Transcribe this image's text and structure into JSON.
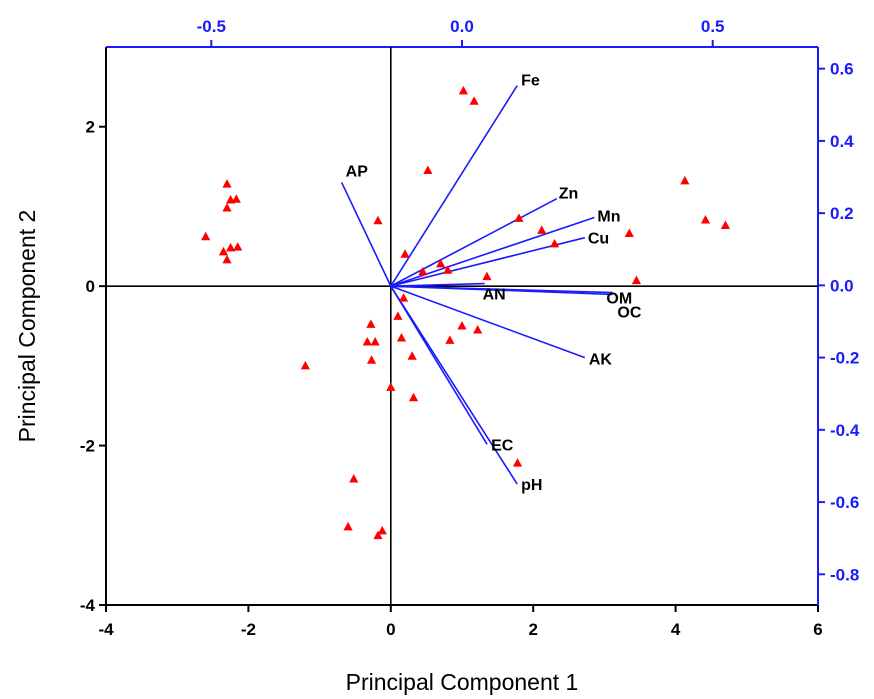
{
  "chart_data": {
    "type": "scatter",
    "xlabel": "Principal Component 1",
    "ylabel": "Principal Component 2",
    "xlim": [
      -4,
      6
    ],
    "ylim": [
      -4,
      3
    ],
    "x_ticks": [
      -4,
      -2,
      0,
      2,
      4,
      6
    ],
    "x_tick_labels": [
      "-4",
      "-2",
      "0",
      "2",
      "4",
      "6"
    ],
    "y_ticks": [
      -4,
      -2,
      0,
      2
    ],
    "y_tick_labels": [
      "-4",
      "-2",
      "0",
      "2"
    ],
    "top_xlim": [
      -0.71,
      0.71
    ],
    "top_ticks": [
      -0.5,
      0.0,
      0.5
    ],
    "top_tick_labels": [
      "-0.5",
      "0.0",
      "0.5"
    ],
    "right_ylim": [
      -0.885,
      0.66
    ],
    "right_ticks": [
      -0.8,
      -0.6,
      -0.4,
      -0.2,
      0.0,
      0.2,
      0.4,
      0.6
    ],
    "right_tick_labels": [
      "-0.8",
      "-0.6",
      "-0.4",
      "-0.2",
      "0.0",
      "0.2",
      "0.4",
      "0.6"
    ],
    "colors": {
      "scores": "#ff0000",
      "loadings": "#1a1aff",
      "secondary_axes": "#1a1aff",
      "frame": "#000000"
    },
    "scores": [
      [
        -2.3,
        1.28
      ],
      [
        -2.25,
        1.08
      ],
      [
        -2.17,
        1.09
      ],
      [
        -2.3,
        0.98
      ],
      [
        -2.6,
        0.62
      ],
      [
        -2.35,
        0.43
      ],
      [
        -2.25,
        0.48
      ],
      [
        -2.15,
        0.49
      ],
      [
        -2.3,
        0.33
      ],
      [
        -1.2,
        -1.0
      ],
      [
        -0.18,
        0.82
      ],
      [
        0.52,
        1.45
      ],
      [
        1.02,
        2.45
      ],
      [
        1.17,
        2.32
      ],
      [
        0.2,
        0.4
      ],
      [
        0.45,
        0.18
      ],
      [
        0.7,
        0.28
      ],
      [
        0.8,
        0.2
      ],
      [
        1.35,
        0.12
      ],
      [
        1.8,
        0.85
      ],
      [
        2.12,
        0.7
      ],
      [
        2.3,
        0.53
      ],
      [
        3.35,
        0.66
      ],
      [
        3.45,
        0.07
      ],
      [
        4.13,
        1.32
      ],
      [
        4.42,
        0.83
      ],
      [
        4.7,
        0.76
      ],
      [
        0.18,
        -0.15
      ],
      [
        0.1,
        -0.38
      ],
      [
        0.15,
        -0.65
      ],
      [
        -0.28,
        -0.48
      ],
      [
        -0.33,
        -0.7
      ],
      [
        -0.22,
        -0.7
      ],
      [
        -0.27,
        -0.93
      ],
      [
        0.3,
        -0.88
      ],
      [
        1.0,
        -0.5
      ],
      [
        1.22,
        -0.55
      ],
      [
        0.83,
        -0.68
      ],
      [
        0.0,
        -1.27
      ],
      [
        0.32,
        -1.4
      ],
      [
        1.78,
        -2.22
      ],
      [
        -0.52,
        -2.42
      ],
      [
        -0.6,
        -3.02
      ],
      [
        -0.12,
        -3.07
      ],
      [
        -0.18,
        -3.13
      ]
    ],
    "loadings": [
      {
        "label": "Fe",
        "x": 0.11,
        "y": 0.553
      },
      {
        "label": "AP",
        "x": -0.24,
        "y": 0.285
      },
      {
        "label": "Zn",
        "x": 0.189,
        "y": 0.24
      },
      {
        "label": "Mn",
        "x": 0.264,
        "y": 0.188
      },
      {
        "label": "Cu",
        "x": 0.245,
        "y": 0.132
      },
      {
        "label": "OM",
        "x": 0.3,
        "y": -0.025
      },
      {
        "label": "OC",
        "x": 0.3,
        "y": -0.02
      },
      {
        "label": "AN",
        "x": 0.045,
        "y": 0.005
      },
      {
        "label": "AK",
        "x": 0.245,
        "y": -0.2
      },
      {
        "label": "EC",
        "x": 0.05,
        "y": -0.44
      },
      {
        "label": "pH",
        "x": 0.11,
        "y": -0.55
      }
    ]
  }
}
